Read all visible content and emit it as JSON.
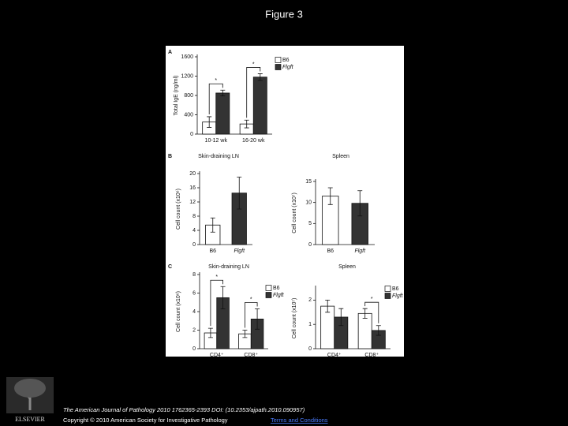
{
  "title": "Figure 3",
  "publisher": "ELSEVIER",
  "citation": "The American Journal of Pathology 2010 1762365-2393 DOI: (10.2353/ajpath.2010.090957)",
  "copyright": "Copyright © 2010 American Society for Investigative Pathology",
  "terms_link": "Terms and Conditions",
  "chart_data": [
    {
      "type": "bar",
      "panel": "A",
      "y_label": "Total IgE (ng/ml)",
      "categories": [
        "10-12 wk",
        "16-20 wk"
      ],
      "series": [
        {
          "name": "B6",
          "color": "#ffffff",
          "values": [
            250,
            210
          ],
          "errors": [
            110,
            80
          ]
        },
        {
          "name": "Flgft",
          "color": "#333333",
          "values": [
            850,
            1180
          ],
          "errors": [
            60,
            70
          ]
        }
      ],
      "ylim": [
        0,
        1600
      ],
      "yticks": [
        0,
        400,
        800,
        1200,
        1600
      ],
      "annotations": [
        "*",
        "*"
      ]
    },
    {
      "type": "bar",
      "panel": "B",
      "title": "Skin-draining LN",
      "y_label": "Cell count (x10⁶)",
      "categories": [
        "B6",
        "Flgft"
      ],
      "values": [
        5.5,
        14.5
      ],
      "errors": [
        2,
        4.5
      ],
      "colors": [
        "#ffffff",
        "#333333"
      ],
      "ylim": [
        0,
        20
      ],
      "yticks": [
        0,
        4,
        8,
        12,
        16,
        20
      ],
      "annotations": [
        "*"
      ]
    },
    {
      "type": "bar",
      "title": "Spleen",
      "y_label": "Cell count (x10⁷)",
      "categories": [
        "B6",
        "Flgft"
      ],
      "values": [
        11.5,
        9.8
      ],
      "errors": [
        2,
        3
      ],
      "colors": [
        "#ffffff",
        "#333333"
      ],
      "ylim": [
        0,
        15
      ],
      "yticks": [
        0,
        5,
        10,
        15
      ]
    },
    {
      "type": "bar",
      "panel": "C",
      "title": "Skin-draining LN",
      "y_label": "Cell count (x10⁶)",
      "categories": [
        "CD4⁺",
        "CD8⁺"
      ],
      "series": [
        {
          "name": "B6",
          "color": "#ffffff",
          "values": [
            1.7,
            1.6
          ],
          "errors": [
            0.5,
            0.4
          ]
        },
        {
          "name": "Flgft",
          "color": "#333333",
          "values": [
            5.5,
            3.2
          ],
          "errors": [
            1.2,
            1.1
          ]
        }
      ],
      "ylim": [
        0,
        8
      ],
      "yticks": [
        0,
        2,
        4,
        6,
        8
      ],
      "annotations": [
        "*",
        "*"
      ]
    },
    {
      "type": "bar",
      "title": "Spleen",
      "y_label": "Cell count (x10⁷)",
      "categories": [
        "CD4⁺",
        "CD8⁺"
      ],
      "series": [
        {
          "name": "B6",
          "color": "#ffffff",
          "values": [
            1.75,
            1.45
          ],
          "errors": [
            0.25,
            0.2
          ]
        },
        {
          "name": "Flgft",
          "color": "#333333",
          "values": [
            1.3,
            0.75
          ],
          "errors": [
            0.35,
            0.2
          ]
        }
      ],
      "ylim": [
        0,
        2.5
      ],
      "yticks": [
        0,
        1,
        2
      ],
      "annotations": [
        "*"
      ]
    }
  ]
}
